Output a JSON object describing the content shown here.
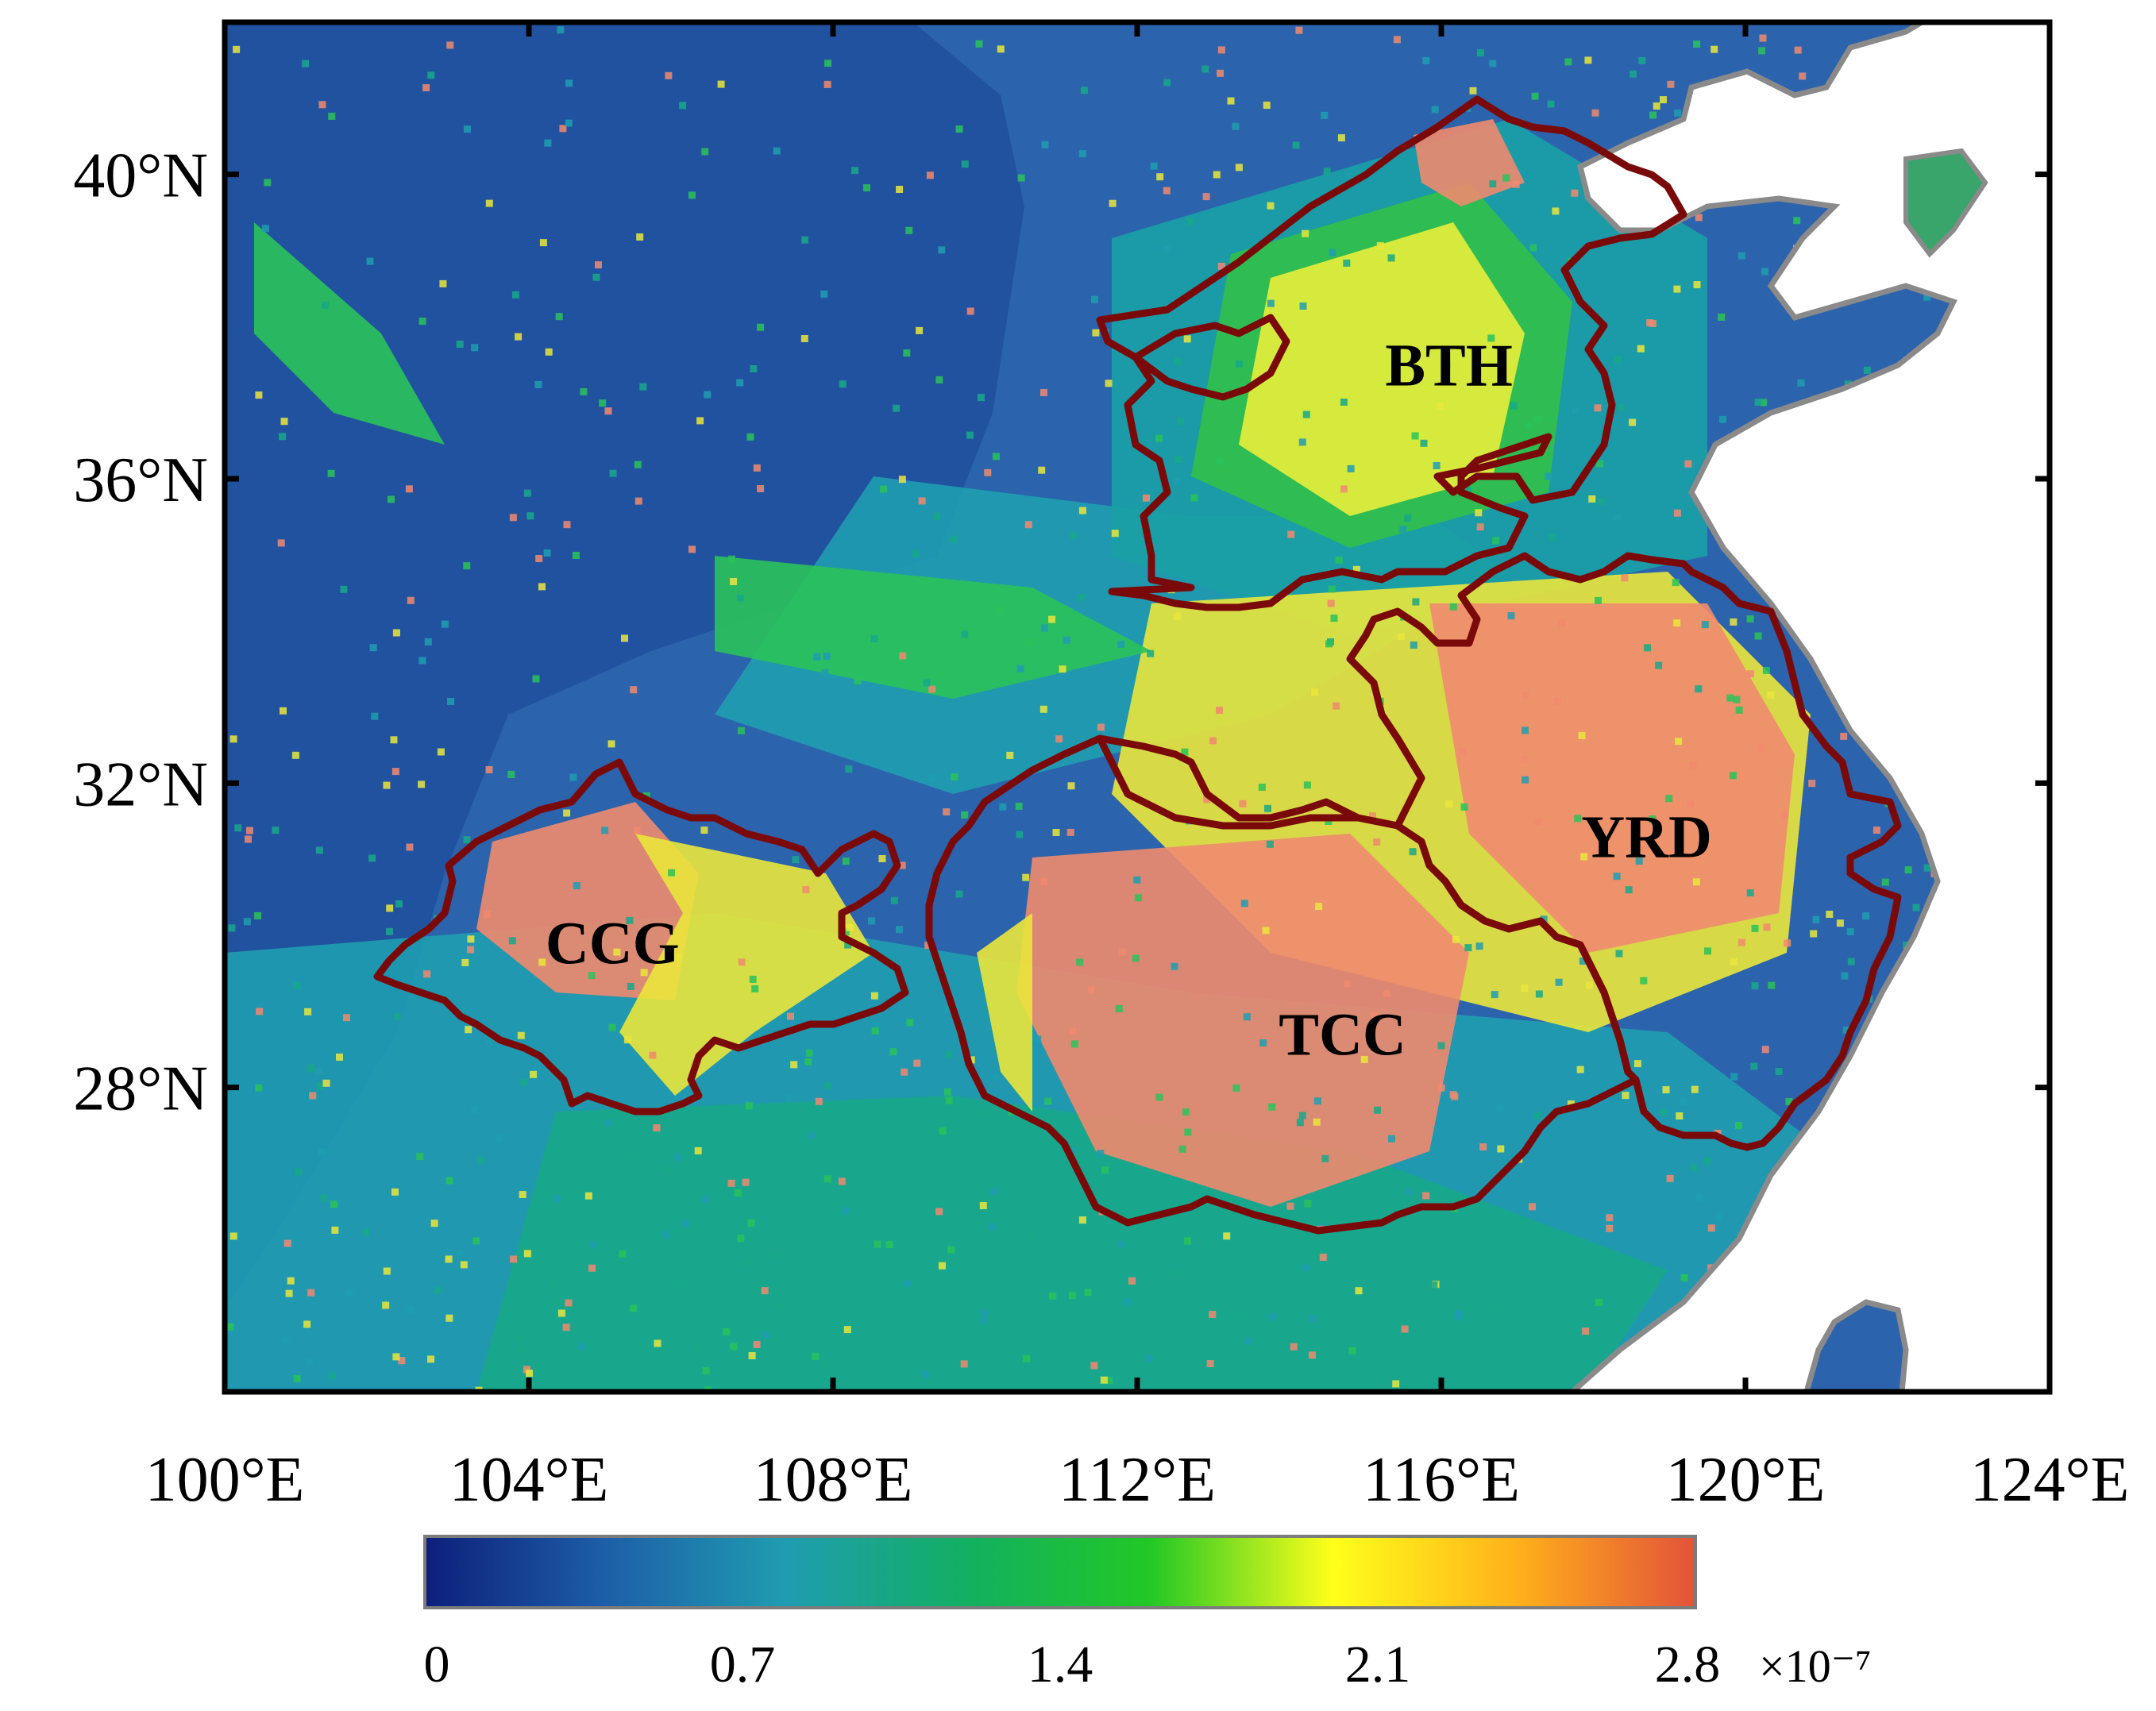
{
  "map": {
    "longitude_range_deg_E": [
      100,
      124
    ],
    "latitude_range_deg_N": [
      24,
      42
    ],
    "x_ticks": [
      {
        "value": 100,
        "label": "100°E"
      },
      {
        "value": 104,
        "label": "104°E"
      },
      {
        "value": 108,
        "label": "108°E"
      },
      {
        "value": 112,
        "label": "112°E"
      },
      {
        "value": 116,
        "label": "116°E"
      },
      {
        "value": 120,
        "label": "120°E"
      },
      {
        "value": 124,
        "label": "124°E"
      }
    ],
    "y_ticks": [
      {
        "value": 28,
        "label": "28°N"
      },
      {
        "value": 32,
        "label": "32°N"
      },
      {
        "value": 36,
        "label": "36°N"
      },
      {
        "value": 40,
        "label": "40°N"
      }
    ],
    "regions": [
      {
        "label": "BTH",
        "lon": 116.1,
        "lat": 37.5
      },
      {
        "label": "YRD",
        "lon": 118.7,
        "lat": 31.3
      },
      {
        "label": "CCG",
        "lon": 105.1,
        "lat": 29.9
      },
      {
        "label": "TCC",
        "lon": 114.7,
        "lat": 28.7
      }
    ],
    "boundary_color": "#7a0a0a",
    "coast_color": "#8a8a8a",
    "land_background_color": "#2b63ad",
    "sea_color": "#ffffff"
  },
  "colorbar": {
    "min": 0,
    "max": 2.8,
    "tick_labels": [
      "0",
      "0.7",
      "1.4",
      "2.1",
      "2.8"
    ],
    "exponent_label": "×10⁻⁷",
    "colors": [
      "#0d1f7a",
      "#1d5fa8",
      "#1f9db0",
      "#12b060",
      "#22c825",
      "#ffff1a",
      "#ffb21a",
      "#e3523a"
    ]
  }
}
